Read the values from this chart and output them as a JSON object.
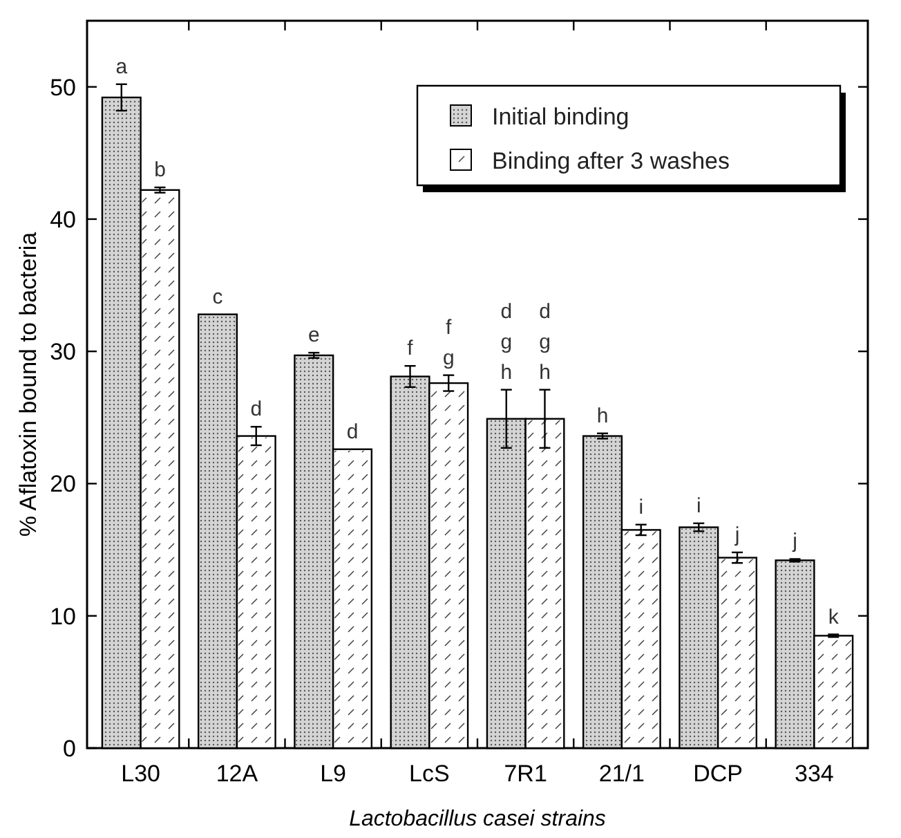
{
  "chart_data": {
    "type": "bar",
    "xlabel": "Lactobacillus casei strains",
    "ylabel": "% Aflatoxin bound to bacteria",
    "categories": [
      "L30",
      "12A",
      "L9",
      "LcS",
      "7R1",
      "21/1",
      "DCP",
      "334"
    ],
    "series": [
      {
        "name": "Initial binding",
        "color": "#d4d4d4",
        "values": [
          49.2,
          32.8,
          29.7,
          28.1,
          24.9,
          23.6,
          16.7,
          14.2
        ],
        "errors": [
          1.0,
          null,
          0.2,
          0.8,
          2.2,
          0.2,
          0.3,
          0.1
        ],
        "value_labels": [
          "a",
          "c",
          "e",
          "f",
          "d\ng\nh",
          "h",
          "i",
          "j"
        ]
      },
      {
        "name": "Binding after 3 washes",
        "color": "#ffffff",
        "values": [
          42.2,
          23.6,
          22.6,
          27.6,
          24.9,
          16.5,
          14.4,
          8.5
        ],
        "errors": [
          0.2,
          0.7,
          null,
          0.6,
          2.2,
          0.4,
          0.4,
          0.1
        ],
        "value_labels": [
          "b",
          "d",
          "d",
          "f\ng",
          "d\ng\nh",
          "i",
          "j",
          "k"
        ]
      }
    ],
    "ylim": [
      0,
      55
    ],
    "yticks": [
      0,
      10,
      20,
      30,
      40,
      50
    ],
    "legend": "top right",
    "grid": false
  }
}
